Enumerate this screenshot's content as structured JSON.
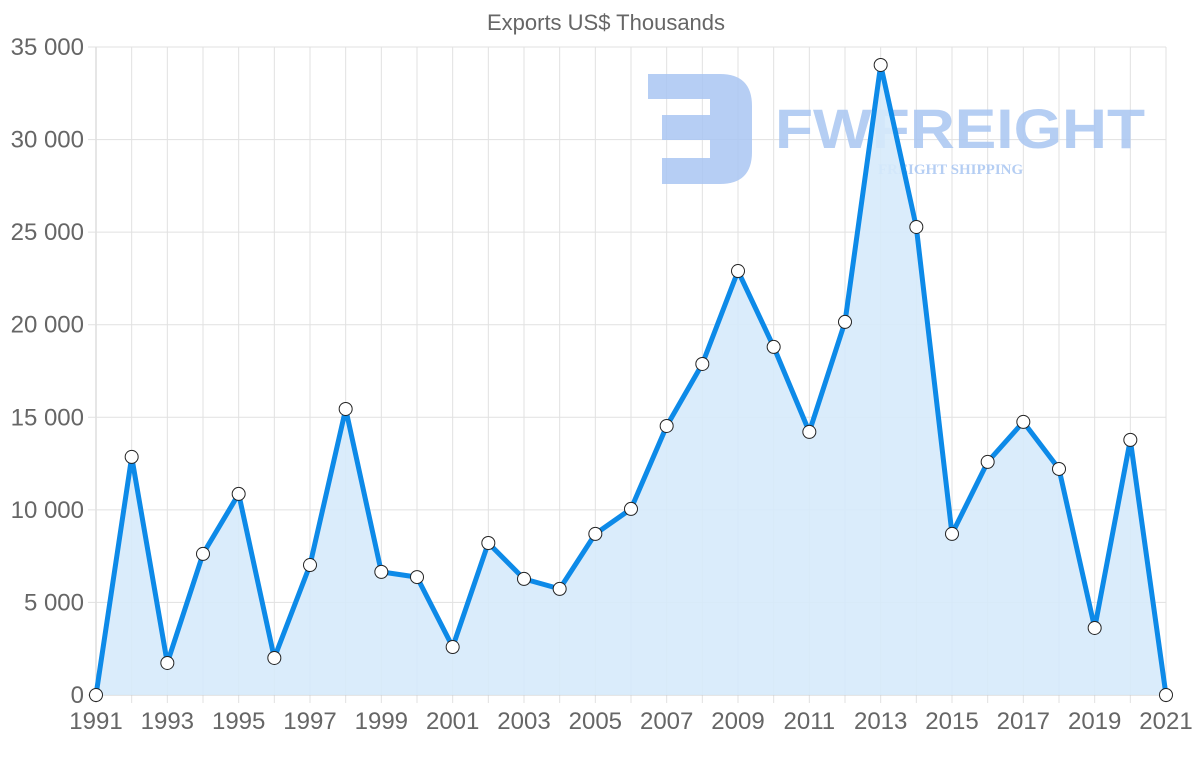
{
  "chart_data": {
    "type": "line",
    "title": "Exports US$ Thousands",
    "xlabel": "",
    "ylabel": "",
    "x": [
      1991,
      1992,
      1993,
      1994,
      1995,
      1996,
      1997,
      1998,
      1999,
      2000,
      2001,
      2002,
      2003,
      2004,
      2005,
      2006,
      2007,
      2008,
      2009,
      2010,
      2011,
      2012,
      2013,
      2014,
      2015,
      2016,
      2017,
      2018,
      2019,
      2020,
      2021
    ],
    "series": [
      {
        "name": "Exports US$ Thousands",
        "values": [
          0,
          12860,
          1730,
          7620,
          10860,
          2000,
          7020,
          15450,
          6650,
          6370,
          2590,
          8210,
          6270,
          5730,
          8700,
          10050,
          14530,
          17880,
          22900,
          18800,
          14210,
          20150,
          34030,
          25280,
          8700,
          12590,
          14750,
          12210,
          3620,
          13780,
          0
        ],
        "color": "#0d8ae8",
        "fill": "#d6eafb"
      }
    ],
    "xticks": [
      "1991",
      "1993",
      "1995",
      "1997",
      "1999",
      "2001",
      "2003",
      "2005",
      "2007",
      "2009",
      "2011",
      "2013",
      "2015",
      "2017",
      "2019",
      "2021"
    ],
    "yticks": [
      "0",
      "5 000",
      "10 000",
      "15 000",
      "20 000",
      "25 000",
      "30 000",
      "35 000"
    ],
    "ylim": [
      0,
      35000
    ],
    "grid": true,
    "legend": "none",
    "filled_area": true
  },
  "watermark": {
    "brand": "FWFREIGHT",
    "tagline": "FREIGHT SHIPPING"
  }
}
